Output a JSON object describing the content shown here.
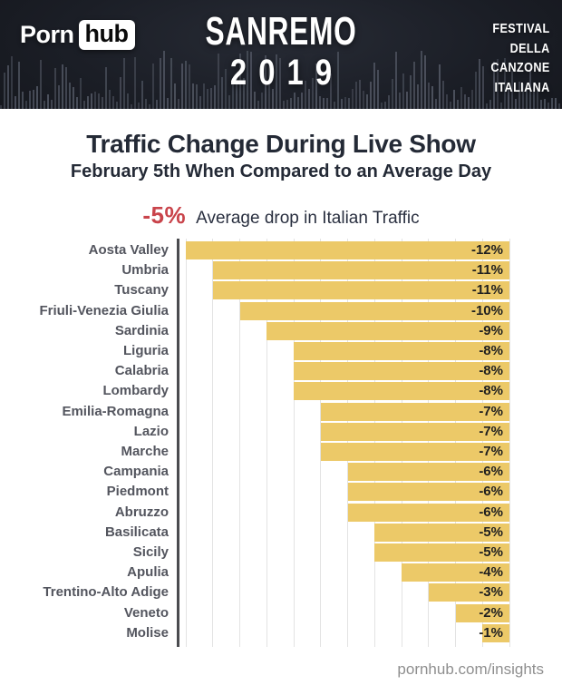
{
  "header": {
    "logo_porn": "Porn",
    "logo_hub": "hub",
    "show_title_line1": "SANREMO",
    "show_title_line2": "2019",
    "festival_lines": [
      "FESTIVAL",
      "DELLA",
      "CANZONE",
      "ITALIANA"
    ]
  },
  "headline": {
    "title": "Traffic Change During Live Show",
    "subtitle": "February 5th When Compared to an Average Day",
    "average_value": "-5%",
    "average_label": "Average drop in Italian Traffic"
  },
  "chart_data": {
    "type": "bar",
    "orientation": "horizontal",
    "title": "Traffic Change During Live Show",
    "categories": [
      "Aosta Valley",
      "Umbria",
      "Tuscany",
      "Friuli-Venezia Giulia",
      "Sardinia",
      "Liguria",
      "Calabria",
      "Lombardy",
      "Emilia-Romagna",
      "Lazio",
      "Marche",
      "Campania",
      "Piedmont",
      "Abruzzo",
      "Basilicata",
      "Sicily",
      "Apulia",
      "Trentino-Alto Adige",
      "Veneto",
      "Molise"
    ],
    "values": [
      -12,
      -11,
      -11,
      -10,
      -9,
      -8,
      -8,
      -8,
      -7,
      -7,
      -7,
      -6,
      -6,
      -6,
      -5,
      -5,
      -4,
      -3,
      -2,
      -1
    ],
    "value_labels": [
      "-12%",
      "-11%",
      "-11%",
      "-10%",
      "-9%",
      "-8%",
      "-8%",
      "-8%",
      "-7%",
      "-7%",
      "-7%",
      "-6%",
      "-6%",
      "-6%",
      "-5%",
      "-5%",
      "-4%",
      "-3%",
      "-2%",
      "-1%"
    ],
    "xlim": [
      -12,
      0
    ],
    "grid": true,
    "bars_anchored": "right",
    "bar_color": "#ecc968",
    "axis_color": "#4a4b4f",
    "grid_color": "#e3e3e3",
    "label_color": "#53555e",
    "value_color": "#202020"
  },
  "colors": {
    "header_bg": "#1b1e26",
    "accent_red": "#c9444b",
    "title_navy": "#242a36",
    "bar_gold": "#ecc968"
  },
  "footer": {
    "link": "pornhub.com/insights"
  }
}
